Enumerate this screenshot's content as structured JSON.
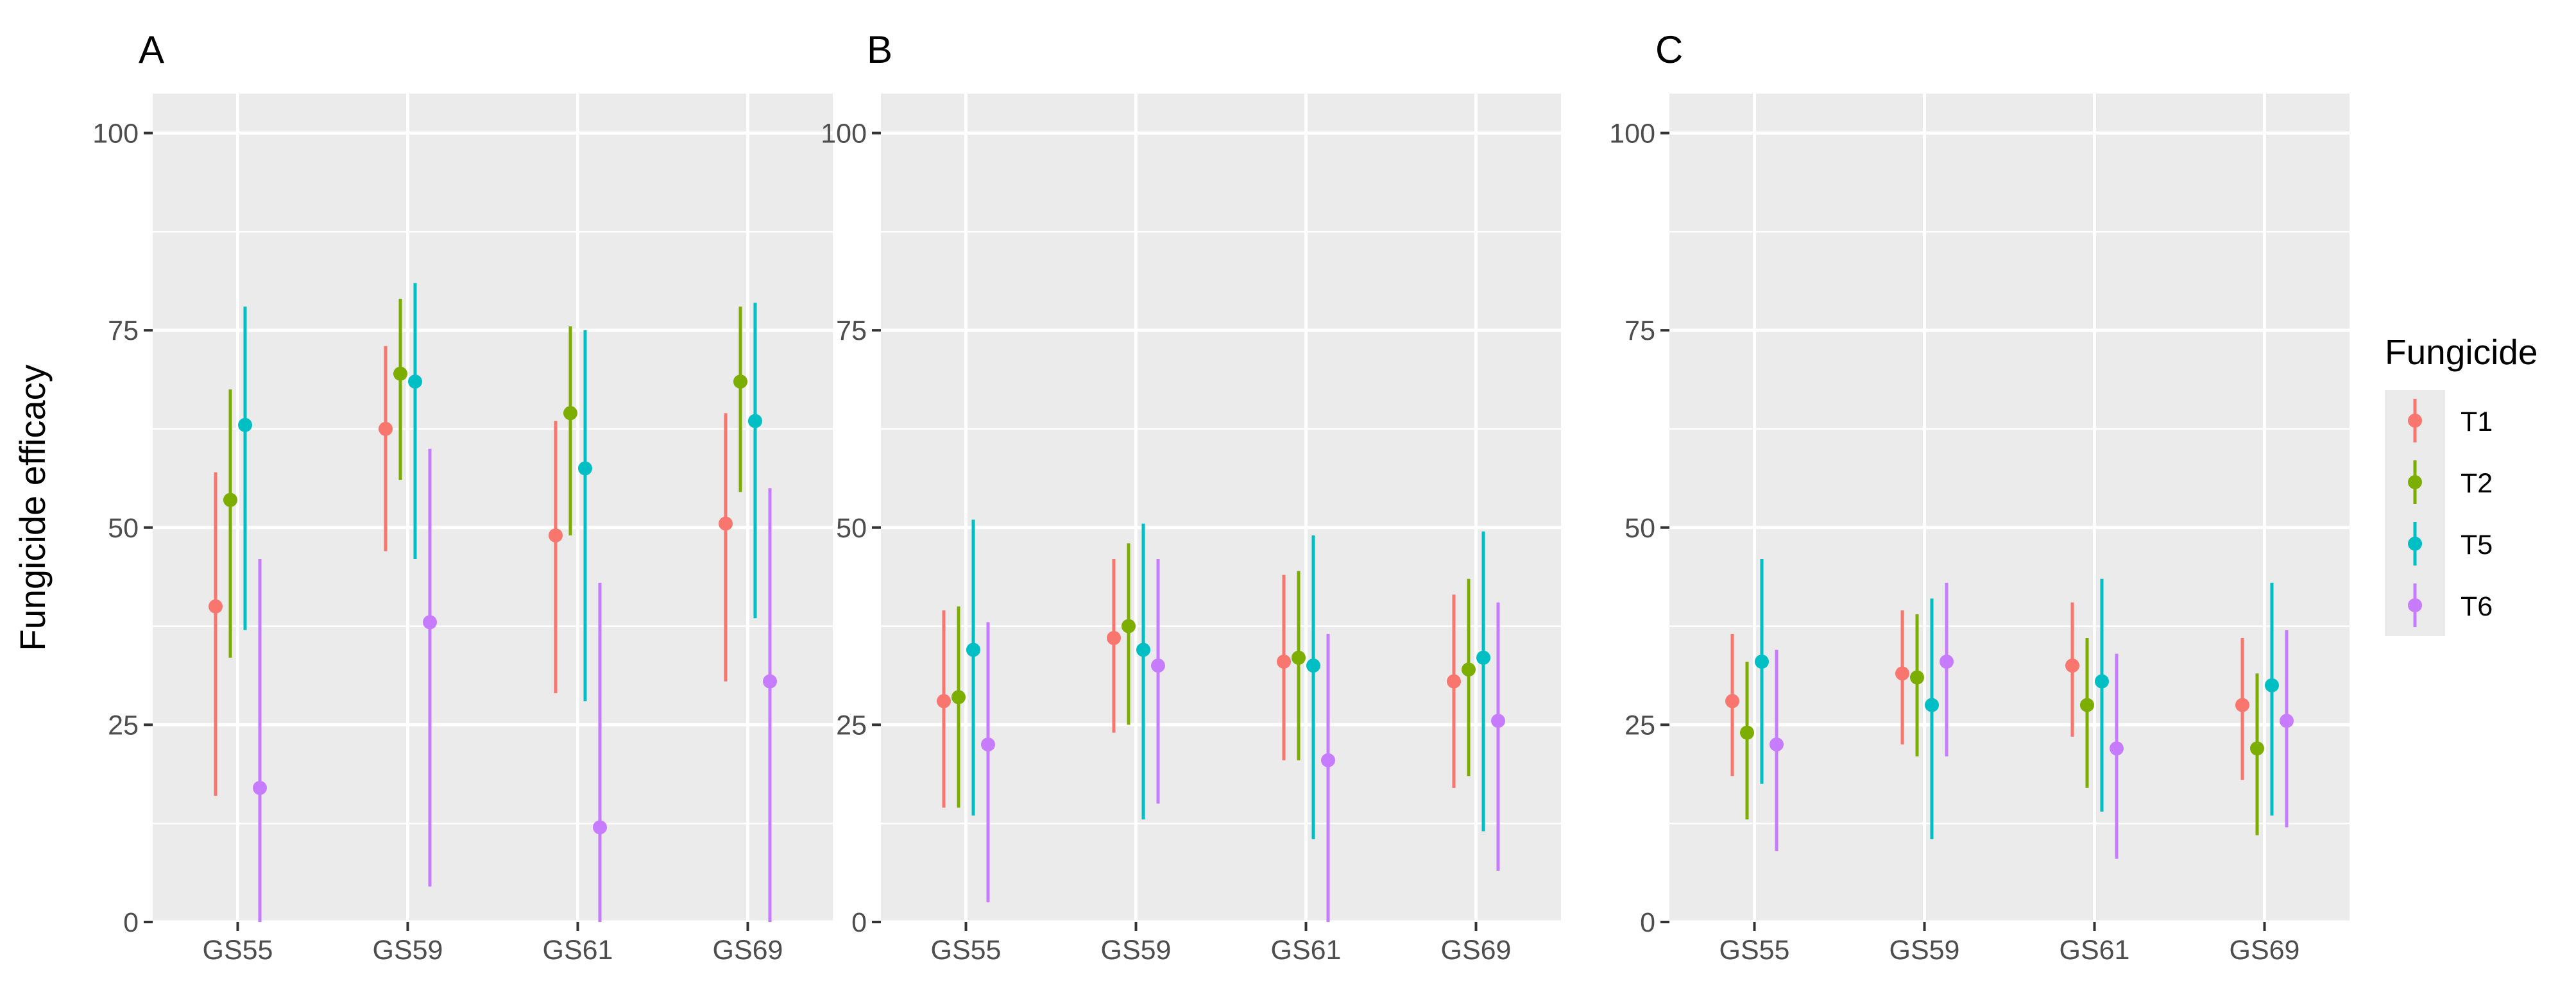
{
  "colors": {
    "T1": "#F8766D",
    "T2": "#7CAE00",
    "T5": "#00BFC4",
    "T6": "#C77CFF",
    "panel_bg": "#EBEBEB",
    "grid": "#FFFFFF",
    "tick_text": "#4D4D4D"
  },
  "chart_data": {
    "type": "errorbar",
    "ylabel": "Fungicide efficacy",
    "ylim": [
      0,
      105
    ],
    "yticks": [
      0,
      25,
      50,
      75,
      100
    ],
    "yticklabels": [
      "0",
      "25",
      "50",
      "75",
      "100"
    ],
    "categories": [
      "GS55",
      "GS59",
      "GS61",
      "GS69"
    ],
    "legend": {
      "title": "Fungicide",
      "entries": [
        "T1",
        "T2",
        "T5",
        "T6"
      ],
      "position": "right"
    },
    "panels": [
      {
        "label": "A",
        "series": [
          {
            "name": "T1",
            "values": [
              40,
              62.5,
              49,
              50.5
            ],
            "lower": [
              16,
              47,
              29,
              30.5
            ],
            "upper": [
              57,
              73,
              63.5,
              64.5
            ]
          },
          {
            "name": "T2",
            "values": [
              53.5,
              69.5,
              64.5,
              68.5
            ],
            "lower": [
              33.5,
              56,
              49,
              54.5
            ],
            "upper": [
              67.5,
              79,
              75.5,
              78
            ]
          },
          {
            "name": "T5",
            "values": [
              63,
              68.5,
              57.5,
              63.5
            ],
            "lower": [
              37,
              46,
              28,
              38.5
            ],
            "upper": [
              78,
              81,
              75,
              78.5
            ]
          },
          {
            "name": "T6",
            "values": [
              17,
              38,
              12,
              30.5
            ],
            "lower": [
              0,
              4.5,
              0,
              0
            ],
            "upper": [
              46,
              60,
              43,
              55
            ]
          }
        ]
      },
      {
        "label": "B",
        "series": [
          {
            "name": "T1",
            "values": [
              28,
              36,
              33,
              30.5
            ],
            "lower": [
              14.5,
              24,
              20.5,
              17
            ],
            "upper": [
              39.5,
              46,
              44,
              41.5
            ]
          },
          {
            "name": "T2",
            "values": [
              28.5,
              37.5,
              33.5,
              32
            ],
            "lower": [
              14.5,
              25,
              20.5,
              18.5
            ],
            "upper": [
              40,
              48,
              44.5,
              43.5
            ]
          },
          {
            "name": "T5",
            "values": [
              34.5,
              34.5,
              32.5,
              33.5
            ],
            "lower": [
              13.5,
              13,
              10.5,
              11.5
            ],
            "upper": [
              51,
              50.5,
              49,
              49.5
            ]
          },
          {
            "name": "T6",
            "values": [
              22.5,
              32.5,
              20.5,
              25.5
            ],
            "lower": [
              2.5,
              15,
              0,
              6.5
            ],
            "upper": [
              38,
              46,
              36.5,
              40.5
            ]
          }
        ]
      },
      {
        "label": "C",
        "series": [
          {
            "name": "T1",
            "values": [
              28,
              31.5,
              32.5,
              27.5
            ],
            "lower": [
              18.5,
              22.5,
              23.5,
              18
            ],
            "upper": [
              36.5,
              39.5,
              40.5,
              36
            ]
          },
          {
            "name": "T2",
            "values": [
              24,
              31,
              27.5,
              22
            ],
            "lower": [
              13,
              21,
              17,
              11
            ],
            "upper": [
              33,
              39,
              36,
              31.5
            ]
          },
          {
            "name": "T5",
            "values": [
              33,
              27.5,
              30.5,
              30
            ],
            "lower": [
              17.5,
              10.5,
              14,
              13.5
            ],
            "upper": [
              46,
              41,
              43.5,
              43
            ]
          },
          {
            "name": "T6",
            "values": [
              22.5,
              33,
              22,
              25.5
            ],
            "lower": [
              9,
              21,
              8,
              12
            ],
            "upper": [
              34.5,
              43,
              34,
              37
            ]
          }
        ]
      }
    ]
  }
}
